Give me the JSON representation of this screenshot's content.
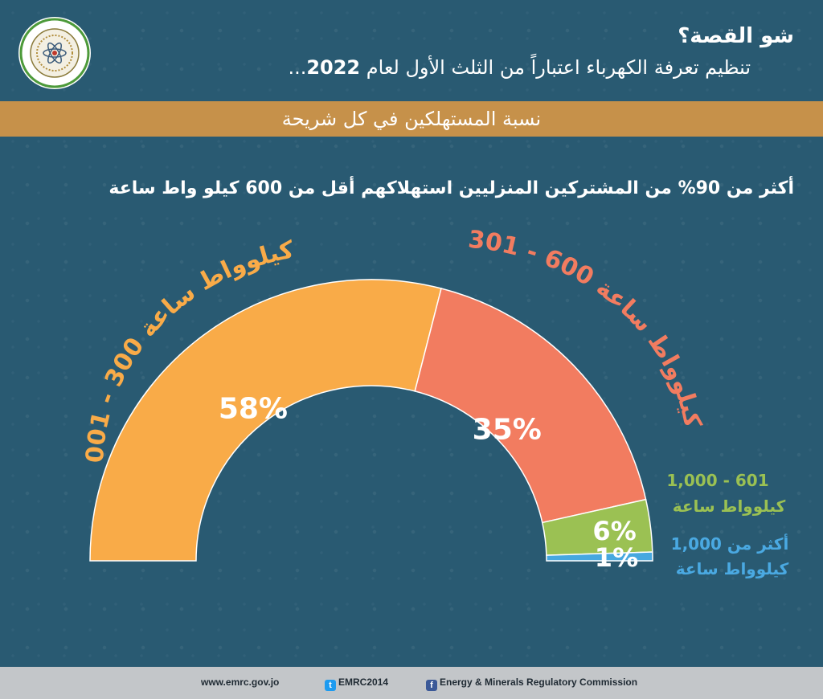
{
  "header": {
    "title": "شو القصة؟",
    "subtitle_text": "تنظيم تعرفة الكهرباء اعتباراً من الثلث الأول لعام",
    "subtitle_year": "2022",
    "subtitle_suffix": "..."
  },
  "band_text": "نسبة المستهلكين في كل شريحة",
  "statement": "أكثر من 90% من المشتركين المنزليين استهلاكهم أقل من 600 كيلو واط ساعة",
  "chart_data": {
    "type": "pie",
    "variant": "semi-donut",
    "slices": [
      {
        "label": "001 - 300 كيلوواط ساعة",
        "value": 58,
        "display": "58%",
        "color": "#f9ab48",
        "label_color": "#f9ab48"
      },
      {
        "label": "301 - 600 كيلوواط ساعة",
        "value": 35,
        "display": "35%",
        "color": "#f27c60",
        "label_color": "#f27c60"
      },
      {
        "label_line1": "1,000 - 601",
        "label_line2": "كيلوواط ساعة",
        "value": 6,
        "display": "6%",
        "color": "#9bc153",
        "label_color": "#9bc153"
      },
      {
        "label_line1": "أكثر من 1,000",
        "label_line2": "كيلوواط ساعة",
        "value": 1,
        "display": "1%",
        "color": "#47a8e0",
        "label_color": "#4aa9e2"
      }
    ]
  },
  "footer": {
    "website": "www.emrc.gov.jo",
    "twitter": "EMRC2014",
    "facebook": "Energy & Minerals Regulatory Commission"
  },
  "colors": {
    "background": "#295a72",
    "band": "#c6914a",
    "footer": "#c3c6c9"
  }
}
